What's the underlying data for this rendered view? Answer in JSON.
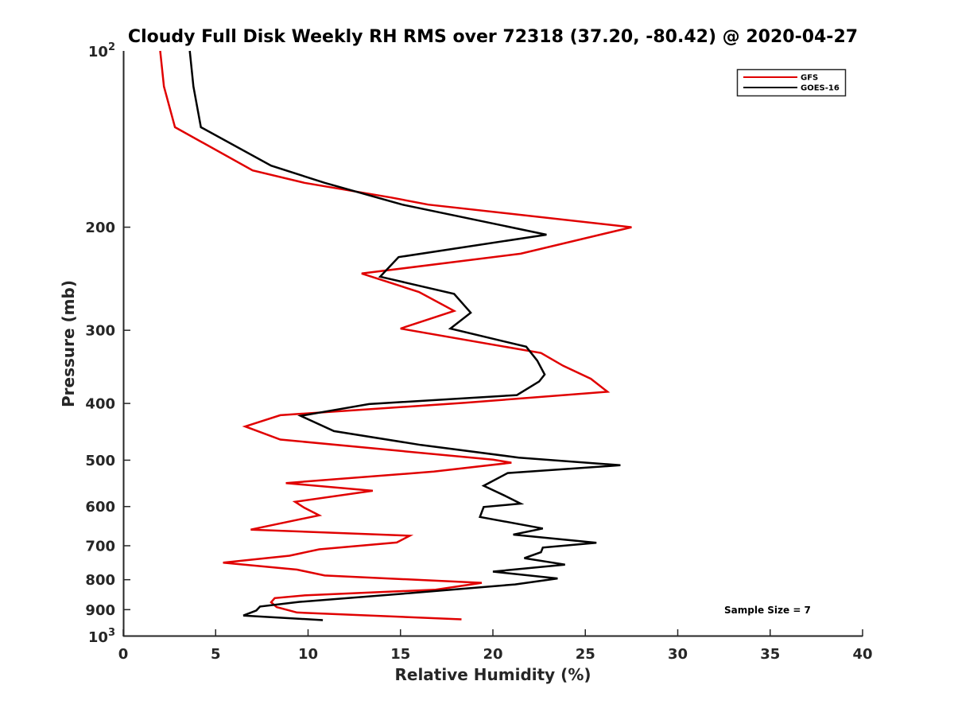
{
  "chart_data": {
    "type": "line",
    "title": "Cloudy Full Disk Weekly RH RMS over 72318 (37.20, -80.42) @ 2020-04-27",
    "xlabel": "Relative Humidity (%)",
    "ylabel": "Pressure (mb)",
    "xlim": [
      0,
      40
    ],
    "ylim": [
      100,
      1000
    ],
    "yscale": "log",
    "y_reversed": true,
    "xticks": [
      0,
      5,
      10,
      15,
      20,
      25,
      30,
      35,
      40
    ],
    "xtick_labels": [
      "0",
      "5",
      "10",
      "15",
      "20",
      "25",
      "30",
      "35",
      "40"
    ],
    "yticks": [
      200,
      300,
      400,
      500,
      600,
      700,
      800,
      900
    ],
    "ytick_labels": [
      "200",
      "300",
      "400",
      "500",
      "600",
      "700",
      "800",
      "900"
    ],
    "yticks_power": [
      {
        "value": 100,
        "base": "10",
        "exp": "2"
      },
      {
        "value": 1000,
        "base": "10",
        "exp": "3"
      }
    ],
    "grid": false,
    "legend_position": "top-right",
    "annotation": "Sample Size = 7",
    "series": [
      {
        "name": "GFS",
        "color": "#e00000",
        "points": [
          [
            2.0,
            100
          ],
          [
            2.2,
            115
          ],
          [
            2.8,
            135
          ],
          [
            7.0,
            160
          ],
          [
            9.8,
            168
          ],
          [
            14.5,
            178
          ],
          [
            16.5,
            183
          ],
          [
            27.5,
            200
          ],
          [
            21.5,
            222
          ],
          [
            12.9,
            240
          ],
          [
            16.0,
            258
          ],
          [
            17.9,
            278
          ],
          [
            15.0,
            298
          ],
          [
            22.6,
            328
          ],
          [
            23.8,
            345
          ],
          [
            25.3,
            363
          ],
          [
            26.2,
            382
          ],
          [
            18.5,
            399
          ],
          [
            8.5,
            419
          ],
          [
            6.6,
            438
          ],
          [
            8.5,
            461
          ],
          [
            20.0,
            499
          ],
          [
            21.0,
            505
          ],
          [
            16.8,
            523
          ],
          [
            8.8,
            547
          ],
          [
            13.5,
            564
          ],
          [
            9.3,
            589
          ],
          [
            9.8,
            603
          ],
          [
            10.6,
            621
          ],
          [
            6.9,
            657
          ],
          [
            15.5,
            673
          ],
          [
            14.8,
            691
          ],
          [
            10.6,
            710
          ],
          [
            9.0,
            728
          ],
          [
            5.4,
            748
          ],
          [
            9.4,
            769
          ],
          [
            10.9,
            787
          ],
          [
            19.4,
            810
          ],
          [
            16.9,
            832
          ],
          [
            9.8,
            851
          ],
          [
            8.2,
            860
          ],
          [
            8.0,
            874
          ],
          [
            8.3,
            891
          ],
          [
            9.4,
            910
          ],
          [
            18.3,
            935
          ]
        ]
      },
      {
        "name": "GOES-16",
        "color": "#000000",
        "points": [
          [
            3.6,
            100
          ],
          [
            3.8,
            115
          ],
          [
            4.2,
            135
          ],
          [
            8.0,
            157
          ],
          [
            10.9,
            168
          ],
          [
            15.1,
            183
          ],
          [
            22.9,
            206
          ],
          [
            14.9,
            225
          ],
          [
            13.9,
            243
          ],
          [
            17.9,
            260
          ],
          [
            18.8,
            280
          ],
          [
            17.7,
            298
          ],
          [
            21.8,
            320
          ],
          [
            22.4,
            338
          ],
          [
            22.8,
            357
          ],
          [
            22.5,
            367
          ],
          [
            21.3,
            387
          ],
          [
            13.3,
            401
          ],
          [
            9.6,
            420
          ],
          [
            11.4,
            446
          ],
          [
            16.1,
            471
          ],
          [
            21.4,
            495
          ],
          [
            26.9,
            510
          ],
          [
            20.8,
            526
          ],
          [
            19.5,
            553
          ],
          [
            20.7,
            576
          ],
          [
            21.5,
            593
          ],
          [
            19.5,
            601
          ],
          [
            19.3,
            625
          ],
          [
            22.7,
            654
          ],
          [
            21.1,
            670
          ],
          [
            25.6,
            692
          ],
          [
            22.7,
            705
          ],
          [
            22.6,
            718
          ],
          [
            21.7,
            735
          ],
          [
            23.9,
            754
          ],
          [
            20.0,
            775
          ],
          [
            23.5,
            796
          ],
          [
            21.2,
            815
          ],
          [
            15.6,
            843
          ],
          [
            9.5,
            873
          ],
          [
            7.4,
            889
          ],
          [
            7.2,
            903
          ],
          [
            6.5,
            921
          ],
          [
            10.8,
            938
          ]
        ]
      }
    ]
  }
}
